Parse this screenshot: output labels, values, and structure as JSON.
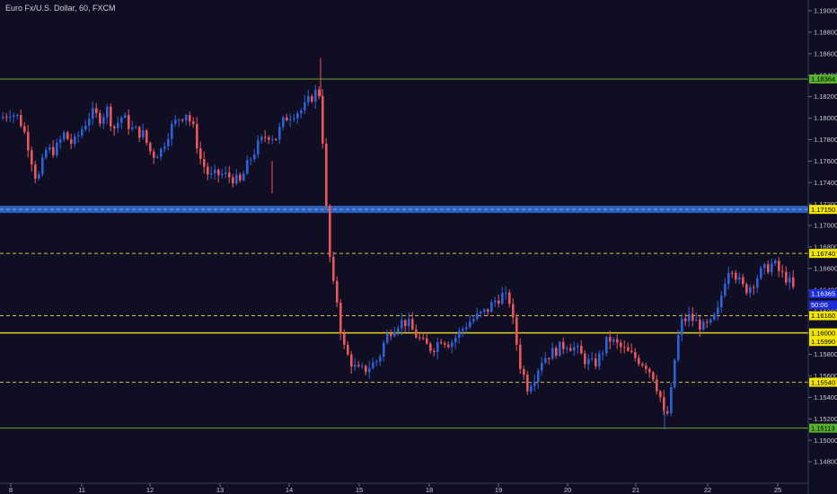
{
  "header": {
    "title": "Euro Fx/U.S. Dollar, 60, FXCM"
  },
  "chart_data": {
    "type": "candlestick",
    "ylim": [
      1.146,
      1.191
    ],
    "y_ticks": [
      1.148,
      1.15,
      1.152,
      1.154,
      1.156,
      1.158,
      1.16,
      1.162,
      1.164,
      1.166,
      1.168,
      1.17,
      1.172,
      1.174,
      1.176,
      1.178,
      1.18,
      1.182,
      1.184,
      1.186,
      1.188,
      1.19
    ],
    "y_tick_labels": [
      "1.14800",
      "1.15000",
      "1.15200",
      "1.15400",
      "1.15600",
      "1.15800",
      "1.16000",
      "1.16200",
      "1.16400",
      "1.16600",
      "1.16800",
      "1.17000",
      "1.17200",
      "1.17400",
      "1.17600",
      "1.17800",
      "1.18000",
      "1.18200",
      "1.18400",
      "1.18600",
      "1.18800",
      "1.19000"
    ],
    "x_ticks": [
      "8",
      "11",
      "12",
      "13",
      "14",
      "15",
      "18",
      "19",
      "20",
      "21",
      "22",
      "25"
    ],
    "levels": [
      {
        "label": "1.18364",
        "value": 1.18364,
        "style": "solid",
        "color": "#6fa83a",
        "badge_bg": "#58b02c",
        "badge_fg": "#000000"
      },
      {
        "label": "1.17150",
        "value": 1.1715,
        "style": "band",
        "color": "#2f6fd6",
        "badge_bg": "#f2e600",
        "badge_fg": "#000000"
      },
      {
        "label": "1.16740",
        "value": 1.1674,
        "style": "dashed",
        "color": "#d7c233",
        "badge_bg": "#f2e600",
        "badge_fg": "#000000"
      },
      {
        "label": "1.16365",
        "value": 1.16365,
        "style": "none",
        "color": "#1d2bd8",
        "badge_bg": "#1d2bd8",
        "badge_fg": "#ffffff"
      },
      {
        "label": "50:00",
        "value": 1.1626,
        "style": "none",
        "color": "#1d2bd8",
        "badge_bg": "#1d2bd8",
        "badge_fg": "#ffffff"
      },
      {
        "label": "1.16160",
        "value": 1.1616,
        "style": "dashed",
        "color": "#d7c233",
        "badge_bg": "#f2e600",
        "badge_fg": "#000000"
      },
      {
        "label": "1.16000",
        "value": 1.16,
        "style": "solidy",
        "color": "#e0cf2a",
        "badge_bg": "#f2e600",
        "badge_fg": "#000000"
      },
      {
        "label": "1.15990",
        "value": 1.1592,
        "style": "none",
        "color": "#d7c233",
        "badge_bg": "#f2e600",
        "badge_fg": "#000000"
      },
      {
        "label": "1.15540",
        "value": 1.1554,
        "style": "dashed",
        "color": "#d7c233",
        "badge_bg": "#f2e600",
        "badge_fg": "#000000"
      },
      {
        "label": "1.15113",
        "value": 1.15113,
        "style": "solid",
        "color": "#6fa83a",
        "badge_bg": "#58b02c",
        "badge_fg": "#000000"
      }
    ],
    "anchors": [
      [
        0,
        1.18
      ],
      [
        10,
        1.1806
      ],
      [
        20,
        1.18
      ],
      [
        28,
        1.1782
      ],
      [
        40,
        1.174
      ],
      [
        50,
        1.177
      ],
      [
        60,
        1.177
      ],
      [
        70,
        1.1785
      ],
      [
        80,
        1.1775
      ],
      [
        90,
        1.179
      ],
      [
        100,
        1.1805
      ],
      [
        110,
        1.18
      ],
      [
        118,
        1.1808
      ],
      [
        125,
        1.179
      ],
      [
        135,
        1.1802
      ],
      [
        145,
        1.179
      ],
      [
        158,
        1.1785
      ],
      [
        168,
        1.1765
      ],
      [
        178,
        1.177
      ],
      [
        188,
        1.179
      ],
      [
        198,
        1.18
      ],
      [
        206,
        1.1805
      ],
      [
        214,
        1.179
      ],
      [
        222,
        1.1762
      ],
      [
        232,
        1.1745
      ],
      [
        244,
        1.1748
      ],
      [
        256,
        1.1745
      ],
      [
        266,
        1.174
      ],
      [
        276,
        1.176
      ],
      [
        286,
        1.1775
      ],
      [
        296,
        1.1785
      ],
      [
        306,
        1.1782
      ],
      [
        316,
        1.18
      ],
      [
        326,
        1.1805
      ],
      [
        336,
        1.1808
      ],
      [
        344,
        1.1818
      ],
      [
        352,
        1.1826
      ],
      [
        356,
        1.182
      ],
      [
        360,
        1.174
      ],
      [
        364,
        1.169
      ],
      [
        368,
        1.165
      ],
      [
        374,
        1.163
      ],
      [
        380,
        1.159
      ],
      [
        388,
        1.1575
      ],
      [
        396,
        1.1565
      ],
      [
        404,
        1.1565
      ],
      [
        412,
        1.157
      ],
      [
        420,
        1.1575
      ],
      [
        428,
        1.1595
      ],
      [
        436,
        1.1605
      ],
      [
        444,
        1.161
      ],
      [
        452,
        1.161
      ],
      [
        460,
        1.16
      ],
      [
        470,
        1.159
      ],
      [
        480,
        1.1585
      ],
      [
        490,
        1.1595
      ],
      [
        500,
        1.159
      ],
      [
        510,
        1.16
      ],
      [
        520,
        1.161
      ],
      [
        530,
        1.1615
      ],
      [
        540,
        1.162
      ],
      [
        550,
        1.163
      ],
      [
        558,
        1.1635
      ],
      [
        566,
        1.163
      ],
      [
        572,
        1.16
      ],
      [
        578,
        1.157
      ],
      [
        586,
        1.155
      ],
      [
        594,
        1.156
      ],
      [
        602,
        1.1575
      ],
      [
        610,
        1.158
      ],
      [
        620,
        1.1585
      ],
      [
        630,
        1.159
      ],
      [
        640,
        1.1585
      ],
      [
        650,
        1.1575
      ],
      [
        660,
        1.157
      ],
      [
        668,
        1.158
      ],
      [
        676,
        1.1595
      ],
      [
        684,
        1.159
      ],
      [
        692,
        1.1585
      ],
      [
        700,
        1.158
      ],
      [
        710,
        1.1575
      ],
      [
        718,
        1.157
      ],
      [
        726,
        1.156
      ],
      [
        734,
        1.154
      ],
      [
        740,
        1.1515
      ],
      [
        746,
        1.1545
      ],
      [
        752,
        1.159
      ],
      [
        758,
        1.161
      ],
      [
        766,
        1.1615
      ],
      [
        774,
        1.161
      ],
      [
        782,
        1.1605
      ],
      [
        790,
        1.1608
      ],
      [
        798,
        1.162
      ],
      [
        806,
        1.165
      ],
      [
        812,
        1.1665
      ],
      [
        820,
        1.165
      ],
      [
        828,
        1.164
      ],
      [
        836,
        1.1645
      ],
      [
        844,
        1.1655
      ],
      [
        852,
        1.166
      ],
      [
        860,
        1.1665
      ],
      [
        868,
        1.1655
      ],
      [
        876,
        1.165
      ],
      [
        884,
        1.1638
      ]
    ]
  }
}
